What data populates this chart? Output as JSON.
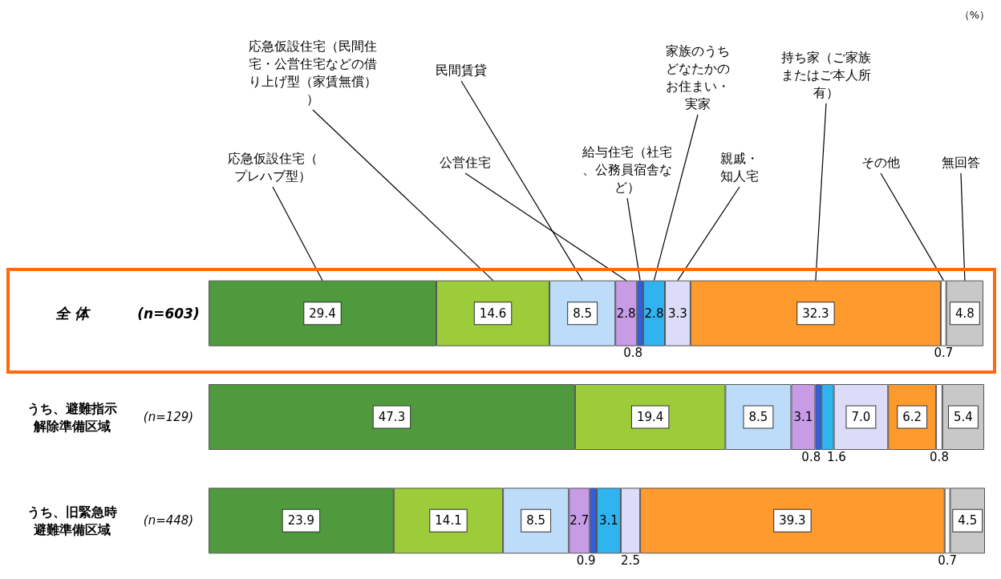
{
  "chart_data": {
    "type": "bar",
    "orientation": "horizontal",
    "stacked": true,
    "data_labels": true,
    "legend": false,
    "categories": [
      "全 体 (n=603)",
      "うち、避難指示解除準備区域 (n=129)",
      "うち、旧緊急時避難準備区域 (n=448)"
    ],
    "series": [
      {
        "name": "応急仮設住宅（プレハブ型）",
        "color": "#4f9a3c",
        "values": [
          29.4,
          47.3,
          23.9
        ]
      },
      {
        "name": "応急仮設住宅（民間住宅・公営住宅などの借り上げ型（家賃無償））",
        "color": "#9ccc3a",
        "values": [
          14.6,
          19.4,
          14.1
        ]
      },
      {
        "name": "民間賃貸",
        "color": "#bcdcfa",
        "values": [
          8.5,
          8.5,
          8.5
        ]
      },
      {
        "name": "公営住宅",
        "color": "#c79be6",
        "values": [
          2.8,
          3.1,
          2.7
        ]
      },
      {
        "name": "給与住宅（社宅、公務員宿舎など）",
        "color": "#2f5fe0",
        "values": [
          0.8,
          0.8,
          0.9
        ]
      },
      {
        "name": "家族のうちどなたかのお住まい・実家",
        "color": "#30b4f0",
        "values": [
          2.8,
          1.6,
          3.1
        ]
      },
      {
        "name": "親戚・知人宅",
        "color": "#dcdcf8",
        "values": [
          3.3,
          7.0,
          2.5
        ],
        "value_labels": [
          "3.3",
          "7.0",
          "2.5"
        ]
      },
      {
        "name": "持ち家（ご家族またはご本人所有）",
        "color": "#ff9a2e",
        "values": [
          32.3,
          6.2,
          39.3
        ]
      },
      {
        "name": "その他",
        "color": "#ffffff",
        "values": [
          0.7,
          0.8,
          0.7
        ]
      },
      {
        "name": "無回答",
        "color": "#c8c8c8",
        "values": [
          4.8,
          5.4,
          4.5
        ]
      }
    ],
    "annotations": [
      "（%）"
    ]
  }
}
